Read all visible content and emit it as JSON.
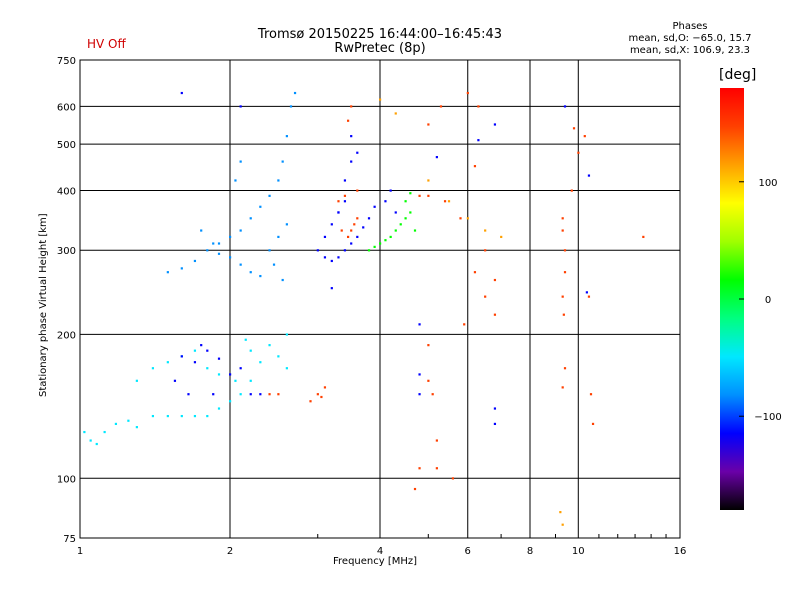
{
  "header": {
    "title_line1": "Tromsø 20150225 16:44:00–16:45:43",
    "title_line2": "RwPretec (8p)",
    "status": "HV Off",
    "stats_title": "Phases",
    "stats_line1": "mean, sd,O: −65.0, 15.7",
    "stats_line2": "mean, sd,X: 106.9, 23.3"
  },
  "colors": {
    "status": "#d00000",
    "colorbar_stops": [
      "#000000",
      "#6a00a8",
      "#0000ff",
      "#0090ff",
      "#00e8ff",
      "#00ff80",
      "#00ff00",
      "#a0ff00",
      "#ffff00",
      "#ffa000",
      "#ff4000",
      "#ff0000"
    ]
  },
  "chart_data": {
    "type": "scatter",
    "title": "Tromsø 20150225 16:44:00–16:45:43",
    "subtitle": "RwPretec (8p)",
    "xlabel": "Frequency [MHz]",
    "ylabel": "Stationary phase Virtual Height [km]",
    "x_scale": "log",
    "y_scale": "log",
    "xlim": [
      1,
      16
    ],
    "ylim": [
      75,
      750
    ],
    "x_ticks": [
      1,
      2,
      4,
      6,
      8,
      10,
      16
    ],
    "x_tick_labels": [
      "1",
      "2",
      "4",
      "6",
      "8",
      "10",
      "16"
    ],
    "y_ticks": [
      75,
      100,
      200,
      300,
      400,
      500,
      600,
      750
    ],
    "y_tick_labels": [
      "75",
      "100",
      "200",
      "300",
      "400",
      "500",
      "600",
      "750"
    ],
    "grid": true,
    "colorbar": {
      "label": "[deg]",
      "range": [
        -180,
        180
      ],
      "ticks": [
        -100,
        0,
        100
      ],
      "tick_labels": [
        "−100",
        "0",
        "100"
      ]
    },
    "series": [
      {
        "color_phase": -60,
        "points": [
          [
            1.02,
            125
          ],
          [
            1.05,
            120
          ],
          [
            1.08,
            118
          ],
          [
            1.12,
            125
          ],
          [
            1.18,
            130
          ],
          [
            1.25,
            132
          ],
          [
            1.3,
            128
          ],
          [
            1.4,
            135
          ],
          [
            1.5,
            135
          ],
          [
            1.6,
            135
          ],
          [
            1.7,
            135
          ],
          [
            1.8,
            135
          ],
          [
            1.9,
            140
          ],
          [
            2.0,
            145
          ],
          [
            2.1,
            150
          ],
          [
            2.2,
            160
          ],
          [
            2.3,
            175
          ],
          [
            2.4,
            190
          ],
          [
            2.5,
            180
          ],
          [
            2.6,
            170
          ],
          [
            1.3,
            160
          ],
          [
            1.4,
            170
          ],
          [
            1.5,
            175
          ],
          [
            1.6,
            180
          ],
          [
            1.7,
            185
          ],
          [
            1.8,
            170
          ],
          [
            1.9,
            165
          ],
          [
            2.05,
            160
          ],
          [
            2.15,
            195
          ],
          [
            2.2,
            185
          ],
          [
            2.6,
            200
          ]
        ]
      },
      {
        "color_phase": -100,
        "points": [
          [
            1.6,
            180
          ],
          [
            1.7,
            175
          ],
          [
            1.75,
            190
          ],
          [
            1.8,
            185
          ],
          [
            1.9,
            178
          ],
          [
            2.0,
            165
          ],
          [
            2.1,
            170
          ],
          [
            2.2,
            150
          ],
          [
            2.3,
            150
          ],
          [
            1.55,
            160
          ],
          [
            1.65,
            150
          ],
          [
            1.85,
            150
          ]
        ]
      },
      {
        "color_phase": -70,
        "points": [
          [
            1.5,
            270
          ],
          [
            1.6,
            275
          ],
          [
            1.7,
            285
          ],
          [
            1.8,
            300
          ],
          [
            1.9,
            310
          ],
          [
            2.0,
            320
          ],
          [
            2.1,
            330
          ],
          [
            2.2,
            350
          ],
          [
            2.3,
            370
          ],
          [
            2.4,
            390
          ],
          [
            2.5,
            420
          ],
          [
            2.55,
            460
          ],
          [
            2.6,
            520
          ],
          [
            2.65,
            600
          ],
          [
            2.7,
            640
          ],
          [
            2.4,
            300
          ],
          [
            2.5,
            320
          ],
          [
            2.6,
            340
          ],
          [
            2.45,
            280
          ],
          [
            2.55,
            260
          ],
          [
            2.2,
            270
          ],
          [
            2.3,
            265
          ],
          [
            2.1,
            280
          ],
          [
            2.0,
            290
          ],
          [
            1.9,
            295
          ],
          [
            2.05,
            420
          ],
          [
            2.1,
            460
          ],
          [
            1.75,
            330
          ],
          [
            1.85,
            310
          ]
        ]
      },
      {
        "color_phase": -110,
        "points": [
          [
            3.0,
            300
          ],
          [
            3.1,
            290
          ],
          [
            3.2,
            285
          ],
          [
            3.3,
            290
          ],
          [
            3.4,
            300
          ],
          [
            3.5,
            310
          ],
          [
            3.6,
            320
          ],
          [
            3.7,
            335
          ],
          [
            3.8,
            350
          ],
          [
            3.9,
            370
          ],
          [
            3.1,
            320
          ],
          [
            3.2,
            340
          ],
          [
            3.3,
            360
          ],
          [
            3.4,
            380
          ],
          [
            3.2,
            250
          ],
          [
            3.3,
            360
          ],
          [
            3.4,
            420
          ],
          [
            3.5,
            460
          ],
          [
            3.6,
            480
          ],
          [
            3.5,
            520
          ],
          [
            4.1,
            380
          ],
          [
            4.2,
            400
          ],
          [
            4.3,
            360
          ],
          [
            1.6,
            640
          ],
          [
            2.1,
            600
          ],
          [
            5.2,
            470
          ],
          [
            6.3,
            510
          ],
          [
            6.8,
            550
          ],
          [
            9.4,
            600
          ],
          [
            10.5,
            430
          ],
          [
            10.4,
            245
          ],
          [
            4.8,
            210
          ],
          [
            4.8,
            165
          ],
          [
            4.8,
            150
          ],
          [
            6.8,
            130
          ],
          [
            6.8,
            140
          ]
        ]
      },
      {
        "color_phase": 30,
        "points": [
          [
            3.8,
            300
          ],
          [
            3.9,
            305
          ],
          [
            4.0,
            310
          ],
          [
            4.1,
            315
          ],
          [
            4.2,
            320
          ],
          [
            4.3,
            330
          ],
          [
            4.4,
            340
          ],
          [
            4.5,
            350
          ],
          [
            4.6,
            360
          ],
          [
            4.7,
            330
          ],
          [
            4.5,
            380
          ],
          [
            4.6,
            395
          ]
        ]
      },
      {
        "color_phase": 150,
        "points": [
          [
            2.9,
            145
          ],
          [
            3.0,
            150
          ],
          [
            3.1,
            155
          ],
          [
            3.05,
            148
          ],
          [
            3.35,
            330
          ],
          [
            3.45,
            320
          ],
          [
            3.5,
            330
          ],
          [
            3.55,
            340
          ],
          [
            3.6,
            350
          ],
          [
            3.3,
            380
          ],
          [
            3.4,
            390
          ],
          [
            3.6,
            400
          ],
          [
            3.45,
            560
          ],
          [
            3.5,
            600
          ],
          [
            5.0,
            550
          ],
          [
            5.3,
            600
          ],
          [
            6.0,
            640
          ],
          [
            6.3,
            600
          ],
          [
            4.8,
            390
          ],
          [
            5.0,
            390
          ],
          [
            5.4,
            380
          ],
          [
            5.8,
            350
          ],
          [
            6.2,
            270
          ],
          [
            6.5,
            240
          ],
          [
            6.8,
            220
          ],
          [
            5.9,
            210
          ],
          [
            9.3,
            350
          ],
          [
            9.3,
            330
          ],
          [
            9.4,
            300
          ],
          [
            9.4,
            270
          ],
          [
            9.3,
            240
          ],
          [
            9.35,
            220
          ],
          [
            9.4,
            170
          ],
          [
            9.3,
            155
          ],
          [
            10.5,
            240
          ],
          [
            10.6,
            150
          ],
          [
            10.7,
            130
          ],
          [
            5.0,
            190
          ],
          [
            5.0,
            160
          ],
          [
            5.1,
            150
          ],
          [
            5.2,
            120
          ],
          [
            5.2,
            105
          ],
          [
            5.6,
            100
          ],
          [
            4.8,
            105
          ],
          [
            4.7,
            95
          ],
          [
            13.5,
            320
          ],
          [
            10.3,
            520
          ],
          [
            10.0,
            480
          ],
          [
            9.7,
            400
          ],
          [
            9.8,
            540
          ],
          [
            6.5,
            300
          ],
          [
            6.8,
            260
          ],
          [
            6.2,
            450
          ],
          [
            2.4,
            150
          ],
          [
            2.5,
            150
          ]
        ]
      },
      {
        "color_phase": 100,
        "points": [
          [
            4.0,
            620
          ],
          [
            4.3,
            580
          ],
          [
            5.0,
            420
          ],
          [
            5.5,
            380
          ],
          [
            6.0,
            350
          ],
          [
            6.5,
            330
          ],
          [
            7.0,
            320
          ],
          [
            9.2,
            85
          ],
          [
            9.3,
            80
          ]
        ]
      }
    ]
  }
}
